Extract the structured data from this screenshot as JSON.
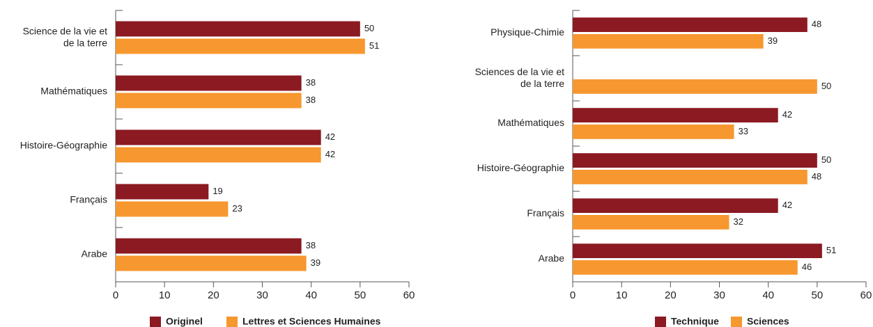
{
  "chart_data": [
    {
      "type": "bar",
      "horizontal": true,
      "categories": [
        "Science de la vie et de la terre",
        "Mathématiques",
        "Histoire-Géographie",
        "Français",
        "Arabe"
      ],
      "series": [
        {
          "name": "Originel",
          "color": "#8b1a22",
          "values": [
            50,
            38,
            42,
            19,
            38
          ]
        },
        {
          "name": "Lettres et Sciences Humaines",
          "color": "#f7972f",
          "values": [
            51,
            38,
            42,
            23,
            39
          ]
        }
      ],
      "xlim": [
        0,
        60
      ],
      "xticks": [
        0,
        10,
        20,
        30,
        40,
        50,
        60
      ],
      "legend": "bottom"
    },
    {
      "type": "bar",
      "horizontal": true,
      "categories": [
        "Physique-Chimie",
        "Sciences de la vie et de la terre",
        "Mathématiques",
        "Histoire-Géographie",
        "Français",
        "Arabe"
      ],
      "series": [
        {
          "name": "Technique",
          "color": "#8b1a22",
          "values": [
            48,
            null,
            42,
            50,
            42,
            51
          ]
        },
        {
          "name": "Sciences",
          "color": "#f7972f",
          "values": [
            39,
            50,
            33,
            48,
            32,
            46
          ]
        }
      ],
      "xlim": [
        0,
        60
      ],
      "xticks": [
        0,
        10,
        20,
        30,
        40,
        50,
        60
      ],
      "legend": "bottom"
    }
  ]
}
